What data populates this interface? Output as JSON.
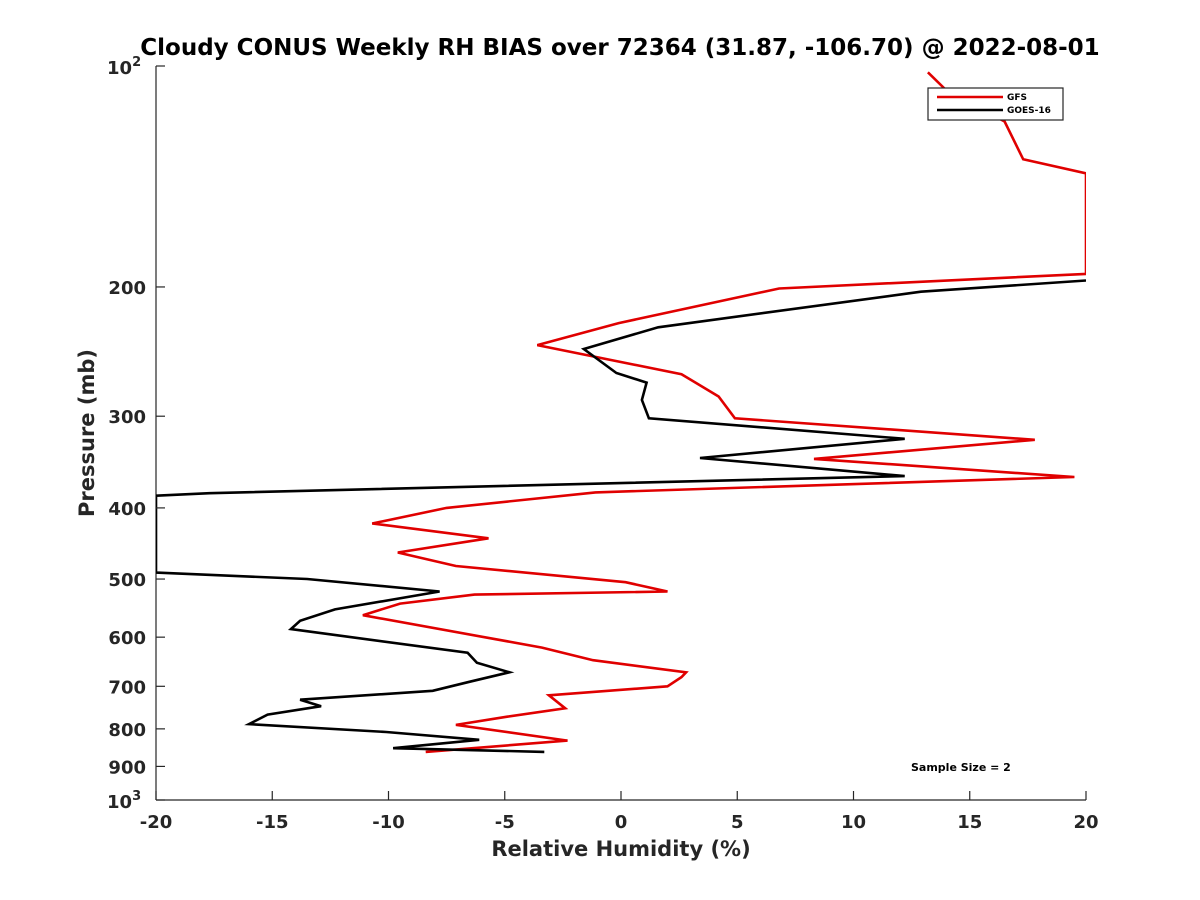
{
  "chart_data": {
    "type": "line",
    "title": "Cloudy CONUS Weekly RH BIAS over 72364 (31.87, -106.70) @ 2022-08-01",
    "xlabel": "Relative Humidity (%)",
    "ylabel": "Pressure (mb)",
    "xlim": [
      -20,
      20
    ],
    "ylim": [
      100,
      1000
    ],
    "yscale": "log",
    "y_reversed": true,
    "x_ticks": [
      "-20",
      "-15",
      "-10",
      "-5",
      "0",
      "5",
      "10",
      "15",
      "20"
    ],
    "y_tick_values": [
      200,
      300,
      400,
      500,
      600,
      700,
      800,
      900
    ],
    "y_tick_labels": [
      "200",
      "300",
      "400",
      "500",
      "600",
      "700",
      "800",
      "900"
    ],
    "y_end_labels": {
      "top_base": "10",
      "top_exp": "2",
      "bottom_base": "10",
      "bottom_exp": "3"
    },
    "grid": false,
    "legend_position": "top-right",
    "annotation": "Sample Size = 2",
    "series": [
      {
        "name": "GFS",
        "color": "#e00000",
        "points": [
          [
            -8.4,
            860
          ],
          [
            -2.3,
            830
          ],
          [
            -7.1,
            790
          ],
          [
            -4.9,
            770
          ],
          [
            -2.4,
            750
          ],
          [
            -3.1,
            720
          ],
          [
            2.0,
            700
          ],
          [
            2.6,
            680
          ],
          [
            2.8,
            670
          ],
          [
            -1.2,
            645
          ],
          [
            -3.4,
            620
          ],
          [
            -11.1,
            560
          ],
          [
            -9.5,
            540
          ],
          [
            -6.3,
            525
          ],
          [
            2.0,
            520
          ],
          [
            0.2,
            505
          ],
          [
            -7.1,
            480
          ],
          [
            -9.6,
            460
          ],
          [
            -5.7,
            440
          ],
          [
            -10.7,
            420
          ],
          [
            -7.5,
            400
          ],
          [
            -1.1,
            381
          ],
          [
            19.5,
            363
          ],
          [
            8.3,
            343
          ],
          [
            17.8,
            323
          ],
          [
            4.9,
            302
          ],
          [
            4.2,
            282
          ],
          [
            2.6,
            263
          ],
          [
            -3.6,
            240
          ],
          [
            -0.1,
            224
          ],
          [
            6.8,
            201
          ],
          [
            20.0,
            192
          ],
          [
            20.0,
            140
          ],
          [
            17.3,
            134
          ],
          [
            16.5,
            119
          ],
          [
            14.0,
            108
          ],
          [
            13.2,
            102
          ]
        ]
      },
      {
        "name": "GOES-16",
        "color": "#000000",
        "points": [
          [
            -3.3,
            860
          ],
          [
            -9.8,
            850
          ],
          [
            -6.1,
            828
          ],
          [
            -10.1,
            808
          ],
          [
            -16.0,
            788
          ],
          [
            -15.2,
            765
          ],
          [
            -12.9,
            745
          ],
          [
            -13.8,
            730
          ],
          [
            -8.1,
            710
          ],
          [
            -6.5,
            690
          ],
          [
            -4.8,
            670
          ],
          [
            -6.2,
            650
          ],
          [
            -6.6,
            630
          ],
          [
            -14.2,
            585
          ],
          [
            -13.8,
            570
          ],
          [
            -12.3,
            550
          ],
          [
            -7.8,
            520
          ],
          [
            -13.5,
            500
          ],
          [
            -20.0,
            490
          ],
          [
            -20.0,
            385
          ],
          [
            -17.7,
            382
          ],
          [
            12.2,
            362
          ],
          [
            3.4,
            342
          ],
          [
            12.2,
            322
          ],
          [
            1.2,
            302
          ],
          [
            0.9,
            285
          ],
          [
            1.1,
            270
          ],
          [
            -0.2,
            262
          ],
          [
            -1.6,
            243
          ],
          [
            1.6,
            227
          ],
          [
            12.9,
            203
          ],
          [
            20.0,
            196
          ]
        ]
      }
    ]
  }
}
